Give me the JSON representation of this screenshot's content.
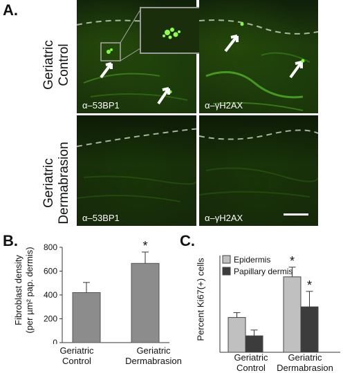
{
  "panel_a": {
    "letter": "A.",
    "row_labels": [
      {
        "line1": "Geriatric",
        "line2": "Control"
      },
      {
        "line1": "Geriatric",
        "line2": "Dermabrasion"
      }
    ],
    "micrographs": [
      {
        "stain": "α–53BP1"
      },
      {
        "stain": "α–γH2AX"
      },
      {
        "stain": "α–53BP1"
      },
      {
        "stain": "α–γH2AX"
      }
    ]
  },
  "chart_data": [
    {
      "panel": "B.",
      "type": "bar",
      "ylabel_line1": "Fibroblast density",
      "ylabel_line2": "(per µm² pap. dermis)",
      "categories": [
        {
          "line1": "Geriatric",
          "line2": "Control"
        },
        {
          "line1": "Geriatric",
          "line2": "Dermabrasion"
        }
      ],
      "values": [
        420,
        665
      ],
      "errors": [
        85,
        95
      ],
      "significance": [
        "",
        "*"
      ],
      "ylim": [
        0,
        800
      ],
      "yticks": [
        0,
        200,
        400,
        600,
        800
      ],
      "bar_color": "#8c8c8c"
    },
    {
      "panel": "C.",
      "type": "bar",
      "ylabel": "Percent Ki67(+) cells",
      "categories": [
        {
          "line1": "Geriatric",
          "line2": "Control"
        },
        {
          "line1": "Geriatric",
          "line2": "Dermabrasion"
        }
      ],
      "series": [
        {
          "name": "Epidermis",
          "color": "#c0c0c0",
          "values": [
            3.6,
            7.8
          ],
          "errors": [
            0.5,
            1.0
          ],
          "significance": [
            "",
            "*"
          ]
        },
        {
          "name": "Papillary dermis",
          "color": "#3c3c3c",
          "values": [
            1.7,
            4.7
          ],
          "errors": [
            0.6,
            1.6
          ],
          "significance": [
            "",
            "*"
          ]
        }
      ],
      "ylim": [
        0,
        10
      ],
      "legend_position": "top-left"
    }
  ]
}
